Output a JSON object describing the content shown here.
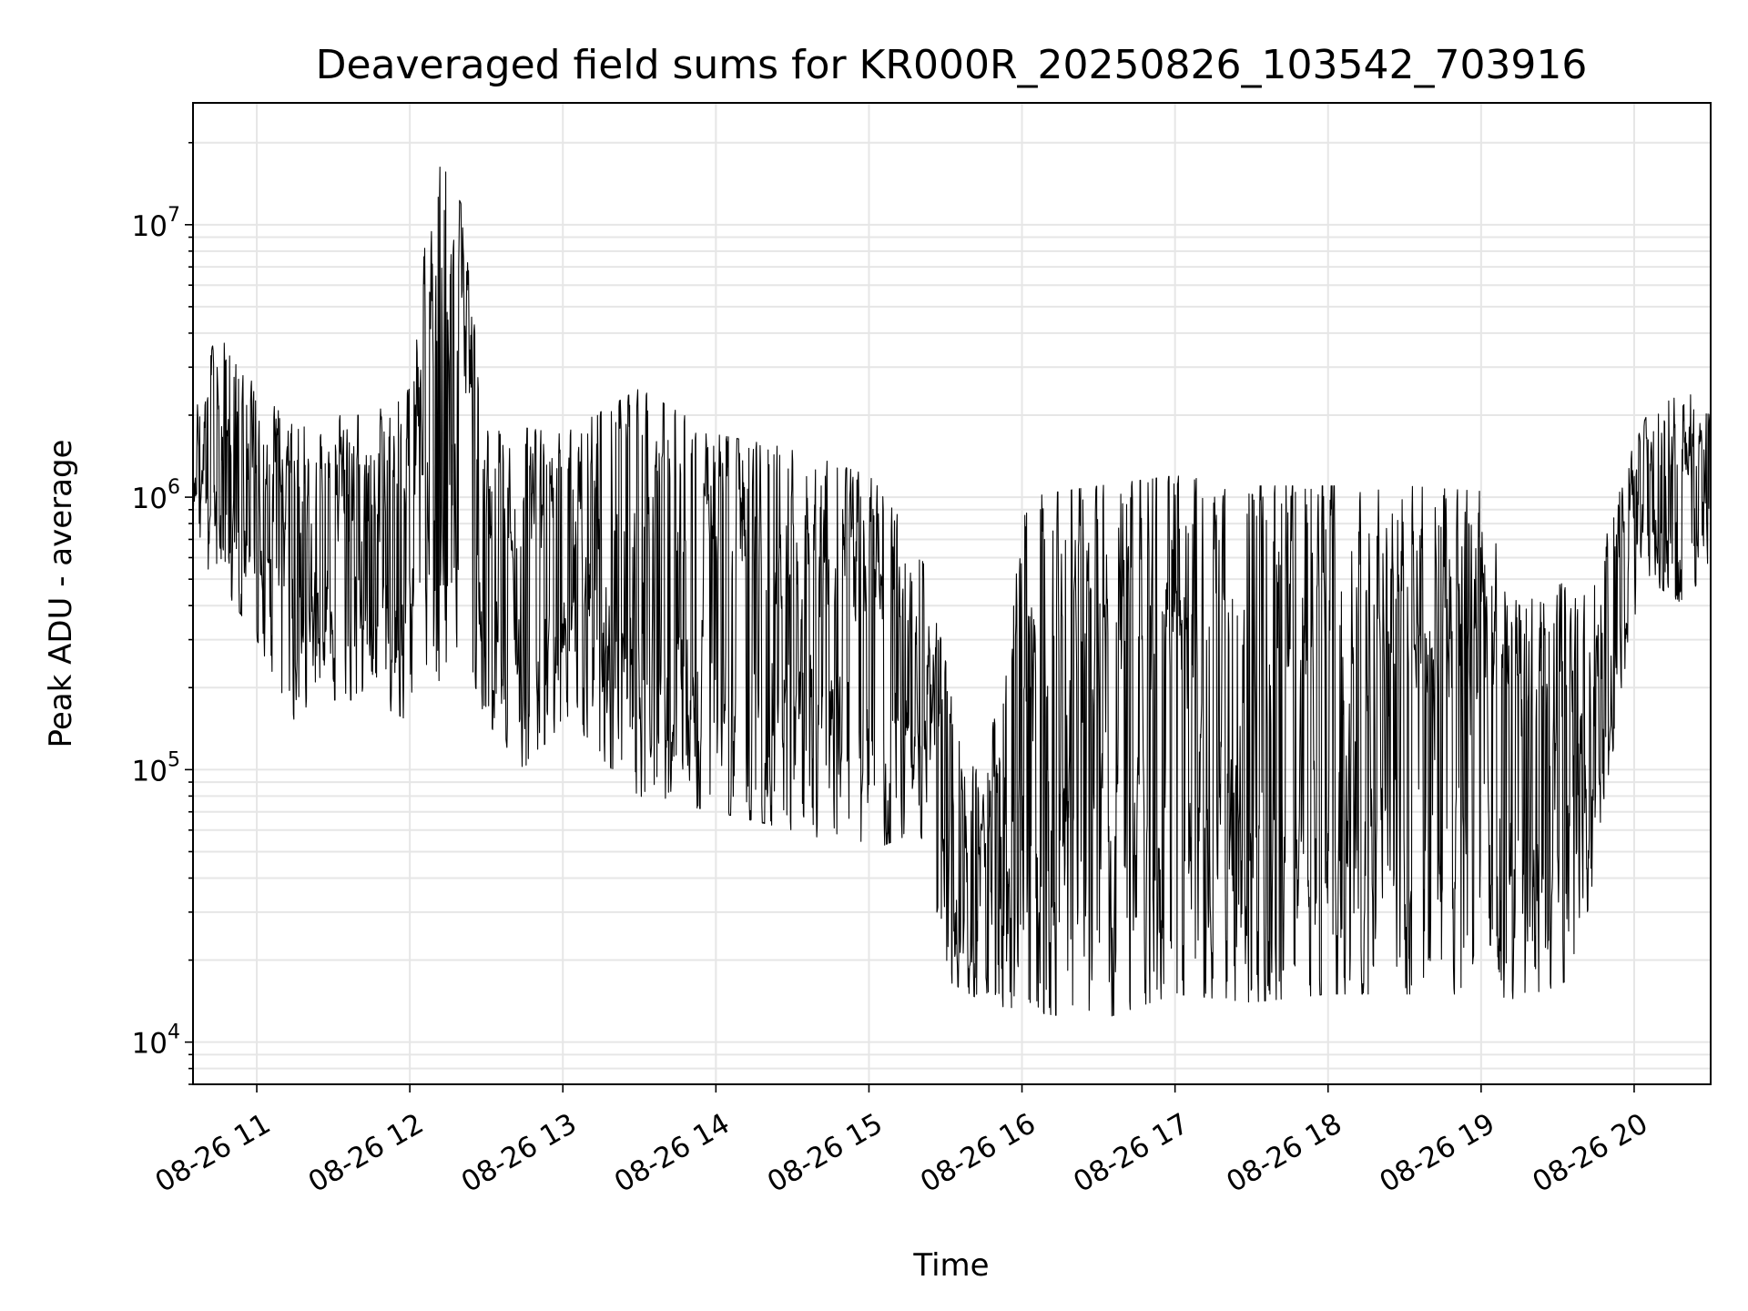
{
  "chart_data": {
    "type": "line",
    "title": "Deaveraged field sums for KR000R_20250826_103542_703916",
    "xlabel": "Time",
    "ylabel": "Peak ADU - average",
    "yscale": "log",
    "xlim": [
      "2025-08-26 10:35",
      "2025-08-26 20:30"
    ],
    "ylim": [
      7000,
      28000000
    ],
    "grid": true,
    "grid_minor": true,
    "line_color": "#000000",
    "x_ticks": [
      {
        "value": "2025-08-26 11:00",
        "label": "08-26 11"
      },
      {
        "value": "2025-08-26 12:00",
        "label": "08-26 12"
      },
      {
        "value": "2025-08-26 13:00",
        "label": "08-26 13"
      },
      {
        "value": "2025-08-26 14:00",
        "label": "08-26 14"
      },
      {
        "value": "2025-08-26 15:00",
        "label": "08-26 15"
      },
      {
        "value": "2025-08-26 16:00",
        "label": "08-26 16"
      },
      {
        "value": "2025-08-26 17:00",
        "label": "08-26 17"
      },
      {
        "value": "2025-08-26 18:00",
        "label": "08-26 18"
      },
      {
        "value": "2025-08-26 19:00",
        "label": "08-26 19"
      },
      {
        "value": "2025-08-26 20:00",
        "label": "08-26 20"
      }
    ],
    "y_ticks": [
      {
        "value": 10000,
        "base": "10",
        "exp": "4"
      },
      {
        "value": 100000,
        "base": "10",
        "exp": "5"
      },
      {
        "value": 1000000,
        "base": "10",
        "exp": "6"
      },
      {
        "value": 10000000,
        "base": "10",
        "exp": "7"
      }
    ],
    "series": [
      {
        "envelope": [
          {
            "t": "2025-08-26 10:35",
            "low": 600000,
            "high": 2500000
          },
          {
            "t": "2025-08-26 10:45",
            "low": 500000,
            "high": 4000000
          },
          {
            "t": "2025-08-26 11:00",
            "low": 300000,
            "high": 2500000
          },
          {
            "t": "2025-08-26 11:15",
            "low": 150000,
            "high": 1800000
          },
          {
            "t": "2025-08-26 11:30",
            "low": 180000,
            "high": 2000000
          },
          {
            "t": "2025-08-26 11:45",
            "low": 180000,
            "high": 2000000
          },
          {
            "t": "2025-08-26 12:00",
            "low": 150000,
            "high": 2500000
          },
          {
            "t": "2025-08-26 12:10",
            "low": 200000,
            "high": 19000000
          },
          {
            "t": "2025-08-26 12:20",
            "low": 300000,
            "high": 12000000
          },
          {
            "t": "2025-08-26 12:30",
            "low": 150000,
            "high": 1800000
          },
          {
            "t": "2025-08-26 12:45",
            "low": 100000,
            "high": 1800000
          },
          {
            "t": "2025-08-26 13:00",
            "low": 150000,
            "high": 1700000
          },
          {
            "t": "2025-08-26 13:30",
            "low": 80000,
            "high": 2500000
          },
          {
            "t": "2025-08-26 14:00",
            "low": 70000,
            "high": 1700000
          },
          {
            "t": "2025-08-26 14:30",
            "low": 60000,
            "high": 1500000
          },
          {
            "t": "2025-08-26 15:00",
            "low": 50000,
            "high": 1200000
          },
          {
            "t": "2025-08-26 15:20",
            "low": 60000,
            "high": 700000
          },
          {
            "t": "2025-08-26 15:30",
            "low": 17000,
            "high": 250000
          },
          {
            "t": "2025-08-26 15:45",
            "low": 14000,
            "high": 80000
          },
          {
            "t": "2025-08-26 16:00",
            "low": 13000,
            "high": 1000000
          },
          {
            "t": "2025-08-26 16:30",
            "low": 12000,
            "high": 1100000
          },
          {
            "t": "2025-08-26 17:00",
            "low": 15000,
            "high": 1200000
          },
          {
            "t": "2025-08-26 17:30",
            "low": 14000,
            "high": 1100000
          },
          {
            "t": "2025-08-26 18:00",
            "low": 15000,
            "high": 1100000
          },
          {
            "t": "2025-08-26 18:30",
            "low": 15000,
            "high": 1100000
          },
          {
            "t": "2025-08-26 19:00",
            "low": 15000,
            "high": 1050000
          },
          {
            "t": "2025-08-26 19:15",
            "low": 14000,
            "high": 400000
          },
          {
            "t": "2025-08-26 19:35",
            "low": 17000,
            "high": 500000
          },
          {
            "t": "2025-08-26 19:45",
            "low": 40000,
            "high": 500000
          },
          {
            "t": "2025-08-26 19:55",
            "low": 200000,
            "high": 1200000
          },
          {
            "t": "2025-08-26 20:05",
            "low": 500000,
            "high": 2000000
          },
          {
            "t": "2025-08-26 20:20",
            "low": 400000,
            "high": 2500000
          },
          {
            "t": "2025-08-26 20:30",
            "low": 600000,
            "high": 2000000
          }
        ]
      }
    ]
  }
}
